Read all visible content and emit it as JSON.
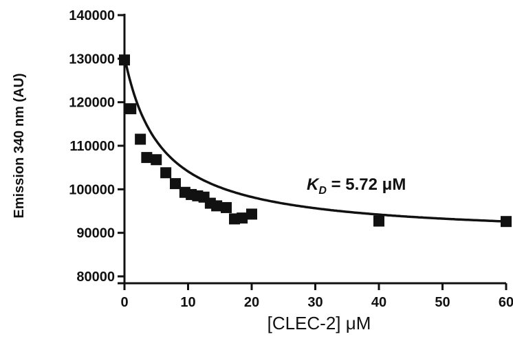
{
  "chart_data": {
    "type": "scatter",
    "title": "",
    "xlabel": "[CLEC-2] μM",
    "ylabel": "Emission 340 nm (AU)",
    "xlim": [
      0,
      60
    ],
    "ylim": [
      80000,
      140000
    ],
    "x_ticks": [
      "0",
      "10",
      "20",
      "30",
      "40",
      "50",
      "60"
    ],
    "y_ticks": [
      "80000",
      "90000",
      "100000",
      "110000",
      "120000",
      "130000",
      "140000"
    ],
    "grid": false,
    "annotation": {
      "K": "K",
      "sub": "D",
      "rest": " = 5.72 μM"
    },
    "series": [
      {
        "points": [
          [
            0,
            129700
          ],
          [
            1,
            118500
          ],
          [
            2.5,
            111500
          ],
          [
            3.5,
            107300
          ],
          [
            5,
            106800
          ],
          [
            6.5,
            103800
          ],
          [
            8,
            101300
          ],
          [
            9.5,
            99300
          ],
          [
            10.5,
            98800
          ],
          [
            11.5,
            98500
          ],
          [
            12.5,
            98200
          ],
          [
            13.5,
            96800
          ],
          [
            14.5,
            96200
          ],
          [
            16,
            95800
          ],
          [
            17.3,
            93200
          ],
          [
            18.5,
            93400
          ],
          [
            20,
            94300
          ],
          [
            40,
            92700
          ],
          [
            60,
            92600
          ]
        ],
        "fit": {
          "model": "one-site binding",
          "y0": 130500,
          "bmax": 41500,
          "kd": 5.72
        }
      }
    ]
  }
}
